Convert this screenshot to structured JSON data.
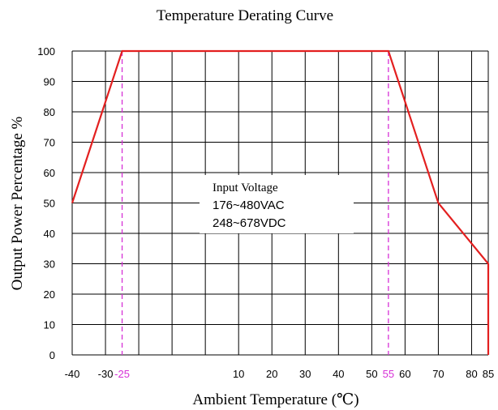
{
  "chart_data": {
    "type": "line",
    "title": "Temperature Derating Curve",
    "xlabel": "Ambient Temperature (℃)",
    "ylabel": "Output Power Percentage %",
    "xlim": [
      -40,
      85
    ],
    "ylim": [
      0,
      100
    ],
    "grid": true,
    "x_grid": [
      -40,
      -30,
      -20,
      -10,
      0,
      10,
      20,
      30,
      40,
      50,
      60,
      70,
      80,
      85
    ],
    "y_ticks": [
      0,
      10,
      20,
      30,
      40,
      50,
      60,
      70,
      80,
      90,
      100
    ],
    "x_ticks": [
      {
        "value": -40,
        "label": "-40",
        "highlight": false
      },
      {
        "value": -30,
        "label": "-30",
        "highlight": false
      },
      {
        "value": -25,
        "label": "-25",
        "highlight": true
      },
      {
        "value": 10,
        "label": "10",
        "highlight": false
      },
      {
        "value": 20,
        "label": "20",
        "highlight": false
      },
      {
        "value": 30,
        "label": "30",
        "highlight": false
      },
      {
        "value": 40,
        "label": "40",
        "highlight": false
      },
      {
        "value": 50,
        "label": "50",
        "highlight": false
      },
      {
        "value": 55,
        "label": "55",
        "highlight": true
      },
      {
        "value": 60,
        "label": "60",
        "highlight": false
      },
      {
        "value": 70,
        "label": "70",
        "highlight": false
      },
      {
        "value": 80,
        "label": "80",
        "highlight": false
      },
      {
        "value": 85,
        "label": "85",
        "highlight": false
      }
    ],
    "series": [
      {
        "points": [
          [
            -40,
            50
          ],
          [
            -25,
            100
          ],
          [
            55,
            100
          ],
          [
            70,
            50
          ],
          [
            85,
            30
          ],
          [
            85,
            0
          ]
        ],
        "color": "#e32020"
      }
    ],
    "reference_lines": [
      {
        "x": -25,
        "color": "#d630d6",
        "style": "dashed"
      },
      {
        "x": 55,
        "color": "#d630d6",
        "style": "dashed"
      }
    ],
    "annotation": {
      "lines": [
        "Input Voltage",
        "176~480VAC",
        "248~678VDC"
      ]
    },
    "colors": {
      "grid": "#000000",
      "line": "#e32020",
      "highlight": "#d630d6"
    }
  }
}
